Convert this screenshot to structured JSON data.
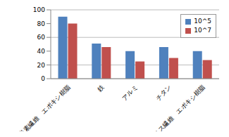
{
  "chart_data": {
    "type": "bar",
    "categories": [
      "炭素繊維　エポキシ樹脂",
      "鉄",
      "アルミ",
      "チタン",
      "ガラス繊維　エポキシ樹脂"
    ],
    "series": [
      {
        "name": "10^5",
        "color": "#4f81bd",
        "values": [
          90,
          51,
          40,
          46,
          40
        ]
      },
      {
        "name": "10^7",
        "color": "#c0504d",
        "values": [
          80,
          46,
          25,
          30,
          27
        ]
      }
    ],
    "ylim": [
      0,
      100
    ],
    "yticks": [
      0,
      20,
      40,
      60,
      80,
      100
    ],
    "grid": true,
    "legend": "upper right"
  }
}
